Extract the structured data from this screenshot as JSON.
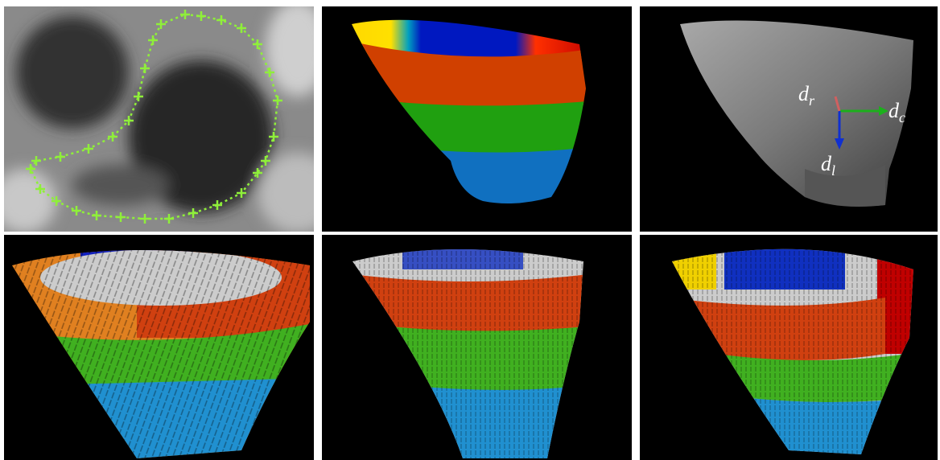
{
  "panels": [
    {},
    {},
    {
      "labels": [
        {
          "base": "d",
          "sub": "r"
        },
        {
          "base": "d",
          "sub": "c"
        },
        {
          "base": "d",
          "sub": "l"
        }
      ]
    },
    {},
    {},
    {}
  ]
}
